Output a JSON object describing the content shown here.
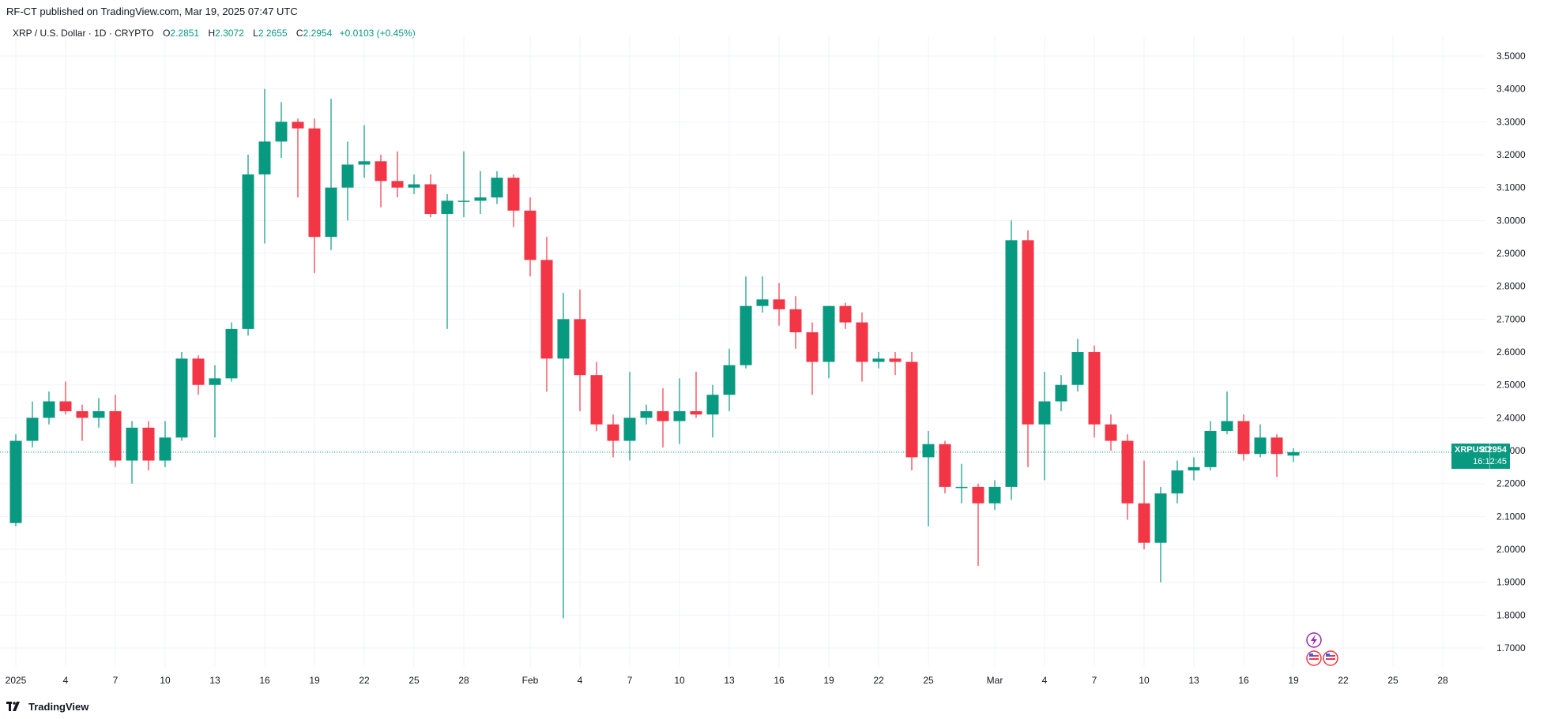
{
  "header": {
    "published": "RF-CT published on TradingView.com, Mar 19, 2025 07:47 UTC"
  },
  "legend": {
    "symbol": "XRP / U.S. Dollar · 1D · CRYPTO",
    "open_label": "O",
    "open": "2.2851",
    "high_label": "H",
    "high": "2.3072",
    "low_label": "L",
    "low": "2.2655",
    "close_label": "C",
    "close": "2.2954",
    "change": "+0.0103 (+0.45%)"
  },
  "price_tag": {
    "symbol": "XRPUSD",
    "price": "2.2954",
    "countdown": "16:12:45"
  },
  "footer": {
    "brand": "TradingView"
  },
  "colors": {
    "up": "#089981",
    "down": "#f23645",
    "grid": "#f0f3fa",
    "axis_text": "#131722"
  },
  "chart_data": {
    "type": "candlestick",
    "ylim": [
      1.65,
      3.55
    ],
    "y_ticks": [
      "3.5000",
      "3.4000",
      "3.3000",
      "3.2000",
      "3.1000",
      "3.0000",
      "2.9000",
      "2.8000",
      "2.7000",
      "2.6000",
      "2.5000",
      "2.4000",
      "2.3000",
      "2.2000",
      "2.1000",
      "2.0000",
      "1.9000",
      "1.8000",
      "1.7000"
    ],
    "x_ticks": [
      {
        "i": 0,
        "label": "2025"
      },
      {
        "i": 3,
        "label": "4"
      },
      {
        "i": 6,
        "label": "7"
      },
      {
        "i": 9,
        "label": "10"
      },
      {
        "i": 12,
        "label": "13"
      },
      {
        "i": 15,
        "label": "16"
      },
      {
        "i": 18,
        "label": "19"
      },
      {
        "i": 21,
        "label": "22"
      },
      {
        "i": 24,
        "label": "25"
      },
      {
        "i": 27,
        "label": "28"
      },
      {
        "i": 31,
        "label": "Feb"
      },
      {
        "i": 34,
        "label": "4"
      },
      {
        "i": 37,
        "label": "7"
      },
      {
        "i": 40,
        "label": "10"
      },
      {
        "i": 43,
        "label": "13"
      },
      {
        "i": 46,
        "label": "16"
      },
      {
        "i": 49,
        "label": "19"
      },
      {
        "i": 52,
        "label": "22"
      },
      {
        "i": 55,
        "label": "25"
      },
      {
        "i": 59,
        "label": "Mar"
      },
      {
        "i": 62,
        "label": "4"
      },
      {
        "i": 65,
        "label": "7"
      },
      {
        "i": 68,
        "label": "10"
      },
      {
        "i": 71,
        "label": "13"
      },
      {
        "i": 74,
        "label": "16"
      },
      {
        "i": 77,
        "label": "19"
      },
      {
        "i": 80,
        "label": "22"
      },
      {
        "i": 83,
        "label": "25"
      },
      {
        "i": 86,
        "label": "28"
      }
    ],
    "candles": [
      {
        "d": "Jan 1",
        "o": 2.08,
        "h": 2.35,
        "l": 2.07,
        "c": 2.33
      },
      {
        "d": "Jan 2",
        "o": 2.33,
        "h": 2.45,
        "l": 2.31,
        "c": 2.4
      },
      {
        "d": "Jan 3",
        "o": 2.4,
        "h": 2.48,
        "l": 2.38,
        "c": 2.45
      },
      {
        "d": "Jan 4",
        "o": 2.45,
        "h": 2.51,
        "l": 2.41,
        "c": 2.42
      },
      {
        "d": "Jan 5",
        "o": 2.42,
        "h": 2.44,
        "l": 2.33,
        "c": 2.4
      },
      {
        "d": "Jan 6",
        "o": 2.4,
        "h": 2.46,
        "l": 2.37,
        "c": 2.42
      },
      {
        "d": "Jan 7",
        "o": 2.42,
        "h": 2.47,
        "l": 2.25,
        "c": 2.27
      },
      {
        "d": "Jan 8",
        "o": 2.27,
        "h": 2.39,
        "l": 2.2,
        "c": 2.37
      },
      {
        "d": "Jan 9",
        "o": 2.37,
        "h": 2.39,
        "l": 2.24,
        "c": 2.27
      },
      {
        "d": "Jan 10",
        "o": 2.27,
        "h": 2.39,
        "l": 2.25,
        "c": 2.34
      },
      {
        "d": "Jan 11",
        "o": 2.34,
        "h": 2.6,
        "l": 2.33,
        "c": 2.58
      },
      {
        "d": "Jan 12",
        "o": 2.58,
        "h": 2.59,
        "l": 2.47,
        "c": 2.5
      },
      {
        "d": "Jan 13",
        "o": 2.5,
        "h": 2.56,
        "l": 2.34,
        "c": 2.52
      },
      {
        "d": "Jan 14",
        "o": 2.52,
        "h": 2.69,
        "l": 2.51,
        "c": 2.67
      },
      {
        "d": "Jan 15",
        "o": 2.67,
        "h": 3.2,
        "l": 2.65,
        "c": 3.14
      },
      {
        "d": "Jan 16",
        "o": 3.14,
        "h": 3.4,
        "l": 2.93,
        "c": 3.24
      },
      {
        "d": "Jan 17",
        "o": 3.24,
        "h": 3.36,
        "l": 3.19,
        "c": 3.3
      },
      {
        "d": "Jan 18",
        "o": 3.3,
        "h": 3.31,
        "l": 3.07,
        "c": 3.28
      },
      {
        "d": "Jan 19",
        "o": 3.28,
        "h": 3.31,
        "l": 2.84,
        "c": 2.95
      },
      {
        "d": "Jan 20",
        "o": 2.95,
        "h": 3.37,
        "l": 2.91,
        "c": 3.1
      },
      {
        "d": "Jan 21",
        "o": 3.1,
        "h": 3.24,
        "l": 3.0,
        "c": 3.17
      },
      {
        "d": "Jan 22",
        "o": 3.17,
        "h": 3.29,
        "l": 3.13,
        "c": 3.18
      },
      {
        "d": "Jan 23",
        "o": 3.18,
        "h": 3.2,
        "l": 3.04,
        "c": 3.12
      },
      {
        "d": "Jan 24",
        "o": 3.12,
        "h": 3.21,
        "l": 3.07,
        "c": 3.1
      },
      {
        "d": "Jan 25",
        "o": 3.1,
        "h": 3.14,
        "l": 3.08,
        "c": 3.11
      },
      {
        "d": "Jan 26",
        "o": 3.11,
        "h": 3.14,
        "l": 3.01,
        "c": 3.02
      },
      {
        "d": "Jan 27",
        "o": 3.02,
        "h": 3.08,
        "l": 2.67,
        "c": 3.06
      },
      {
        "d": "Jan 28",
        "o": 3.06,
        "h": 3.21,
        "l": 3.01,
        "c": 3.06
      },
      {
        "d": "Jan 29",
        "o": 3.06,
        "h": 3.15,
        "l": 3.02,
        "c": 3.07
      },
      {
        "d": "Jan 30",
        "o": 3.07,
        "h": 3.15,
        "l": 3.05,
        "c": 3.13
      },
      {
        "d": "Jan 31",
        "o": 3.13,
        "h": 3.14,
        "l": 2.98,
        "c": 3.03
      },
      {
        "d": "Feb 1",
        "o": 3.03,
        "h": 3.07,
        "l": 2.83,
        "c": 2.88
      },
      {
        "d": "Feb 2",
        "o": 2.88,
        "h": 2.95,
        "l": 2.48,
        "c": 2.58
      },
      {
        "d": "Feb 3",
        "o": 2.58,
        "h": 2.78,
        "l": 1.79,
        "c": 2.7
      },
      {
        "d": "Feb 4",
        "o": 2.7,
        "h": 2.79,
        "l": 2.42,
        "c": 2.53
      },
      {
        "d": "Feb 5",
        "o": 2.53,
        "h": 2.57,
        "l": 2.36,
        "c": 2.38
      },
      {
        "d": "Feb 6",
        "o": 2.38,
        "h": 2.41,
        "l": 2.28,
        "c": 2.33
      },
      {
        "d": "Feb 7",
        "o": 2.33,
        "h": 2.54,
        "l": 2.27,
        "c": 2.4
      },
      {
        "d": "Feb 8",
        "o": 2.4,
        "h": 2.44,
        "l": 2.38,
        "c": 2.42
      },
      {
        "d": "Feb 9",
        "o": 2.42,
        "h": 2.49,
        "l": 2.31,
        "c": 2.39
      },
      {
        "d": "Feb 10",
        "o": 2.39,
        "h": 2.52,
        "l": 2.32,
        "c": 2.42
      },
      {
        "d": "Feb 11",
        "o": 2.42,
        "h": 2.54,
        "l": 2.4,
        "c": 2.41
      },
      {
        "d": "Feb 12",
        "o": 2.41,
        "h": 2.5,
        "l": 2.34,
        "c": 2.47
      },
      {
        "d": "Feb 13",
        "o": 2.47,
        "h": 2.61,
        "l": 2.42,
        "c": 2.56
      },
      {
        "d": "Feb 14",
        "o": 2.56,
        "h": 2.83,
        "l": 2.55,
        "c": 2.74
      },
      {
        "d": "Feb 15",
        "o": 2.74,
        "h": 2.83,
        "l": 2.72,
        "c": 2.76
      },
      {
        "d": "Feb 16",
        "o": 2.76,
        "h": 2.81,
        "l": 2.68,
        "c": 2.73
      },
      {
        "d": "Feb 17",
        "o": 2.73,
        "h": 2.77,
        "l": 2.61,
        "c": 2.66
      },
      {
        "d": "Feb 18",
        "o": 2.66,
        "h": 2.69,
        "l": 2.47,
        "c": 2.57
      },
      {
        "d": "Feb 19",
        "o": 2.57,
        "h": 2.74,
        "l": 2.52,
        "c": 2.74
      },
      {
        "d": "Feb 20",
        "o": 2.74,
        "h": 2.75,
        "l": 2.67,
        "c": 2.69
      },
      {
        "d": "Feb 21",
        "o": 2.69,
        "h": 2.72,
        "l": 2.51,
        "c": 2.57
      },
      {
        "d": "Feb 22",
        "o": 2.57,
        "h": 2.6,
        "l": 2.55,
        "c": 2.58
      },
      {
        "d": "Feb 23",
        "o": 2.58,
        "h": 2.6,
        "l": 2.53,
        "c": 2.57
      },
      {
        "d": "Feb 24",
        "o": 2.57,
        "h": 2.6,
        "l": 2.24,
        "c": 2.28
      },
      {
        "d": "Feb 25",
        "o": 2.28,
        "h": 2.36,
        "l": 2.07,
        "c": 2.32
      },
      {
        "d": "Feb 26",
        "o": 2.32,
        "h": 2.33,
        "l": 2.17,
        "c": 2.19
      },
      {
        "d": "Feb 27",
        "o": 2.19,
        "h": 2.26,
        "l": 2.14,
        "c": 2.19
      },
      {
        "d": "Feb 28",
        "o": 2.19,
        "h": 2.2,
        "l": 1.95,
        "c": 2.14
      },
      {
        "d": "Mar 1",
        "o": 2.14,
        "h": 2.21,
        "l": 2.12,
        "c": 2.19
      },
      {
        "d": "Mar 2",
        "o": 2.19,
        "h": 3.0,
        "l": 2.15,
        "c": 2.94
      },
      {
        "d": "Mar 3",
        "o": 2.94,
        "h": 2.97,
        "l": 2.25,
        "c": 2.38
      },
      {
        "d": "Mar 4",
        "o": 2.38,
        "h": 2.54,
        "l": 2.21,
        "c": 2.45
      },
      {
        "d": "Mar 5",
        "o": 2.45,
        "h": 2.53,
        "l": 2.42,
        "c": 2.5
      },
      {
        "d": "Mar 6",
        "o": 2.5,
        "h": 2.64,
        "l": 2.48,
        "c": 2.6
      },
      {
        "d": "Mar 7",
        "o": 2.6,
        "h": 2.62,
        "l": 2.34,
        "c": 2.38
      },
      {
        "d": "Mar 8",
        "o": 2.38,
        "h": 2.41,
        "l": 2.3,
        "c": 2.33
      },
      {
        "d": "Mar 9",
        "o": 2.33,
        "h": 2.35,
        "l": 2.09,
        "c": 2.14
      },
      {
        "d": "Mar 10",
        "o": 2.14,
        "h": 2.27,
        "l": 2.0,
        "c": 2.02
      },
      {
        "d": "Mar 11",
        "o": 2.02,
        "h": 2.19,
        "l": 1.9,
        "c": 2.17
      },
      {
        "d": "Mar 12",
        "o": 2.17,
        "h": 2.27,
        "l": 2.14,
        "c": 2.24
      },
      {
        "d": "Mar 13",
        "o": 2.24,
        "h": 2.28,
        "l": 2.21,
        "c": 2.25
      },
      {
        "d": "Mar 14",
        "o": 2.25,
        "h": 2.39,
        "l": 2.24,
        "c": 2.36
      },
      {
        "d": "Mar 15",
        "o": 2.36,
        "h": 2.48,
        "l": 2.35,
        "c": 2.39
      },
      {
        "d": "Mar 16",
        "o": 2.39,
        "h": 2.41,
        "l": 2.27,
        "c": 2.29
      },
      {
        "d": "Mar 17",
        "o": 2.29,
        "h": 2.38,
        "l": 2.28,
        "c": 2.34
      },
      {
        "d": "Mar 18",
        "o": 2.34,
        "h": 2.35,
        "l": 2.22,
        "c": 2.29
      },
      {
        "d": "Mar 19",
        "o": 2.2851,
        "h": 2.3072,
        "l": 2.2655,
        "c": 2.2954
      }
    ],
    "last_price": 2.2954
  }
}
